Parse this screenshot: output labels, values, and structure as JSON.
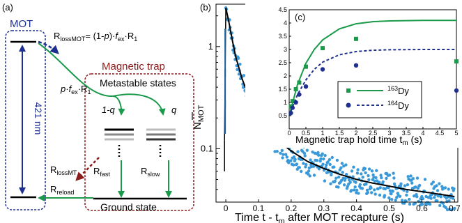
{
  "panel_a": {
    "label": "(a)",
    "mot_label": "MOT",
    "magnetic_trap_label": "Magnetic trap",
    "metastable_label": "Metastable states",
    "ground_label": "Ground state",
    "wavelength_label": "421 nm",
    "loss_mot": {
      "r": "R",
      "sub": "lossMOT",
      "eq": "= (1-",
      "p": "p",
      "close": ")·",
      "f": "f",
      "fsub": "ex",
      "dot": "·R",
      "one": "1"
    },
    "transfer": {
      "p": "p",
      "dot1": "·",
      "f": "f",
      "fsub": "ex",
      "dot2": "·R",
      "one": "1"
    },
    "one_minus_q": "1-q",
    "q": "q",
    "loss_mt": {
      "r": "R",
      "sub": "lossMT"
    },
    "fast": {
      "r": "R",
      "sub": "fast"
    },
    "slow": {
      "r": "R",
      "sub": "slow"
    },
    "reload": {
      "r": "R",
      "sub": "reload"
    },
    "colors": {
      "mot": "#1f2f8f",
      "trap": "#8b1a1a",
      "arrow": "#1a9a4a",
      "level": "#000000"
    }
  },
  "panel_b": {
    "label": "(b)",
    "ylabel_main": "N",
    "ylabel_sub": "MOT",
    "xlabel_a": "Time t - t",
    "xlabel_sub": "m",
    "xlabel_b": " after MOT recapture (s)",
    "xticks": [
      "0",
      "0.1",
      "0.2",
      "0.3",
      "0.4",
      "0.5",
      "0.6",
      "0.7"
    ],
    "yticks": [
      "1",
      "0.1"
    ]
  },
  "panel_c": {
    "label": "(c)",
    "xlabel_a": "Magnetic trap hold time t",
    "xlabel_sub": "m",
    "xlabel_b": " (s)",
    "xticks": [
      "0",
      "0.5",
      "1",
      "1.5",
      "2",
      "2.5",
      "3",
      "3.5",
      "4",
      "4.5",
      "5"
    ],
    "yticks": [
      "0.5",
      "1",
      "1.5",
      "2",
      "2.5",
      "3",
      "3.5",
      "4",
      "4.5"
    ],
    "legend": [
      {
        "sup": "163",
        "name": "Dy",
        "color": "#1a9a4a",
        "marker": "square",
        "line": "solid"
      },
      {
        "sup": "164",
        "name": "Dy",
        "color": "#1f2f8f",
        "marker": "circle",
        "line": "dashed"
      }
    ]
  },
  "chart_data": [
    {
      "type": "scatter",
      "panel": "b",
      "xlabel": "Time t - tm after MOT recapture (s)",
      "ylabel": "N̅MOT",
      "xlim": [
        -0.03,
        0.71
      ],
      "ylim": [
        0.03,
        2.6
      ],
      "yscale": "log",
      "xticks": [
        0,
        0.1,
        0.2,
        0.3,
        0.4,
        0.5,
        0.6,
        0.7
      ],
      "yticks": [
        1,
        0.1
      ],
      "series": [
        {
          "style": "data",
          "color": "#3a9ad9",
          "x": [
            0.0,
            0.01,
            0.02,
            0.03,
            0.05,
            0.07,
            0.1,
            0.13,
            0.16,
            0.2,
            0.25,
            0.3,
            0.35,
            0.4,
            0.45,
            0.5,
            0.55,
            0.6,
            0.65,
            0.7
          ],
          "y": [
            2.4,
            1.7,
            1.15,
            0.8,
            0.48,
            0.33,
            0.2,
            0.15,
            0.12,
            0.095,
            0.075,
            0.064,
            0.056,
            0.05,
            0.046,
            0.043,
            0.04,
            0.038,
            0.036,
            0.034
          ]
        },
        {
          "style": "fit",
          "color": "#000000",
          "x": [
            0.0,
            0.01,
            0.02,
            0.03,
            0.05,
            0.07,
            0.1,
            0.13,
            0.16,
            0.2,
            0.25,
            0.3,
            0.35,
            0.4,
            0.45,
            0.5,
            0.55,
            0.6,
            0.65,
            0.7
          ],
          "y": [
            2.4,
            1.7,
            1.15,
            0.8,
            0.48,
            0.33,
            0.2,
            0.15,
            0.12,
            0.095,
            0.075,
            0.064,
            0.056,
            0.05,
            0.046,
            0.043,
            0.04,
            0.038,
            0.036,
            0.034
          ]
        }
      ]
    },
    {
      "type": "scatter",
      "panel": "c",
      "xlabel": "Magnetic trap hold time tm (s)",
      "xlim": [
        0,
        5
      ],
      "ylim": [
        0,
        4.5
      ],
      "series": [
        {
          "name": "163Dy",
          "marker": "square",
          "color": "#1a9a4a",
          "x": [
            0.05,
            0.1,
            0.2,
            0.3,
            0.5,
            1.0,
            2.0,
            5.0
          ],
          "y": [
            0.85,
            1.05,
            1.5,
            1.75,
            2.35,
            3.05,
            3.4,
            2.55
          ]
        },
        {
          "name": "164Dy",
          "marker": "circle",
          "color": "#1f2f8f",
          "x": [
            0.05,
            0.1,
            0.2,
            0.3,
            0.5,
            1.0,
            2.0,
            5.0
          ],
          "y": [
            0.6,
            0.8,
            1.0,
            1.3,
            1.6,
            2.25,
            2.4,
            1.45
          ]
        },
        {
          "name": "163Dy fit",
          "line": "solid",
          "color": "#1a9a4a",
          "x": [
            0,
            0.25,
            0.5,
            0.75,
            1,
            1.5,
            2,
            2.5,
            3,
            4,
            5
          ],
          "y": [
            0.5,
            1.68,
            2.48,
            3.0,
            3.36,
            3.78,
            3.97,
            4.05,
            4.08,
            4.1,
            4.1
          ]
        },
        {
          "name": "164Dy fit",
          "line": "dashed",
          "color": "#1f2f8f",
          "x": [
            0,
            0.25,
            0.5,
            0.75,
            1,
            1.5,
            2,
            2.5,
            3,
            4,
            5
          ],
          "y": [
            0.5,
            1.3,
            1.85,
            2.25,
            2.52,
            2.8,
            2.92,
            2.97,
            2.99,
            3.0,
            3.0
          ]
        }
      ]
    }
  ]
}
